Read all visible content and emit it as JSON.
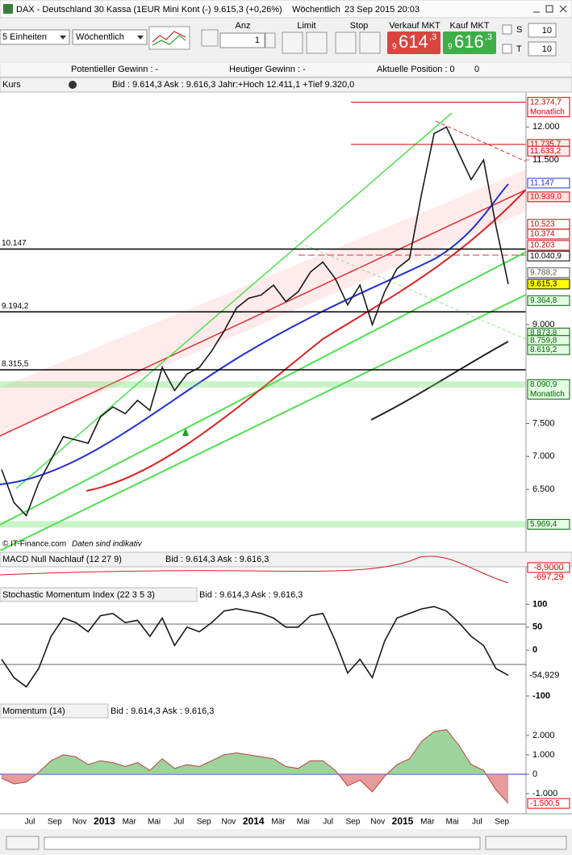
{
  "window": {
    "title": "DAX - Deutschland 30 Kassa (1EUR Mini Kont (-)",
    "price": "9.615,3 (+0,26%)",
    "interval": "Wöchentlich",
    "datetime": "23 Sep 2015 20:03"
  },
  "toolbar": {
    "units": "5 Einheiten",
    "period": "Wöchentlich",
    "anz_label": "Anz",
    "anz_value": "1",
    "limit": "Limit",
    "stop": "Stop",
    "sell_label": "Verkauf MKT",
    "sell_small": "9",
    "sell_big": "614",
    "sell_sup": ",3",
    "buy_label": "Kauf MKT",
    "buy_small": "9",
    "buy_big": "616",
    "buy_sup": ",3",
    "s_label": "S",
    "s_value": "10",
    "t_label": "T",
    "t_value": "10"
  },
  "status": {
    "potential": "Potentieller Gewinn : -",
    "today": "Heutiger Gewinn : -",
    "position": "Aktuelle Position : 0",
    "position_b": "0"
  },
  "price_chart": {
    "type": "line",
    "header": "Kurs",
    "info": "Bid : 9.614,3 Ask : 9.616,3 Jahr:+Hoch 12.411,1 +Tief 9.320,0",
    "copyright": "© IT-Finance.com",
    "disclaimer": "Daten sind indikativ",
    "ylim": [
      5570,
      12530
    ],
    "yticks": [
      {
        "value": 12000,
        "label": "12.000"
      },
      {
        "value": 11500,
        "label": "11.500"
      },
      {
        "value": 9000,
        "label": "9.000"
      },
      {
        "value": 7500,
        "label": "7.500"
      },
      {
        "value": 7000,
        "label": "7.000"
      },
      {
        "value": 6500,
        "label": "6.500"
      }
    ],
    "levels": [
      {
        "value": 10147,
        "label": "10.147"
      },
      {
        "value": 9194.2,
        "label": "9.194,2"
      },
      {
        "value": 8315.5,
        "label": "8.315,5"
      }
    ],
    "price_labels": [
      {
        "value": 12374.7,
        "label": "12.374,7",
        "sub": "Monatlich",
        "color": "#d00000",
        "fill": "#ffffff"
      },
      {
        "value": 11735.7,
        "label": "11.735,7",
        "color": "#d00000",
        "fill": "#ffecec"
      },
      {
        "value": 11633.2,
        "label": "11.633,2",
        "color": "#d00000",
        "fill": "#ffecec"
      },
      {
        "value": 11147,
        "label": "11.147",
        "color": "#2030d0",
        "fill": "#ffffff"
      },
      {
        "value": 10939.0,
        "label": "10.939,0",
        "color": "#d00000",
        "fill": "#ffe0e0"
      },
      {
        "value": 10523,
        "label": "10.523",
        "color": "#d00000",
        "fill": "#ffffff"
      },
      {
        "value": 10374,
        "label": "10.374",
        "color": "#d00000",
        "fill": "#ffffff"
      },
      {
        "value": 10203,
        "label": "10.203",
        "color": "#d00000",
        "fill": "#ffffff"
      },
      {
        "value": 10040.9,
        "label": "10.040,9",
        "color": "#000000",
        "fill": "#ffffff"
      },
      {
        "value": 9788.2,
        "label": "9.788,2",
        "color": "#555555",
        "fill": "#ffffff"
      },
      {
        "value": 9615.3,
        "label": "9.615,3",
        "color": "#000000",
        "fill": "#ffff00"
      },
      {
        "value": 9364.8,
        "label": "9.364,8",
        "color": "#006000",
        "fill": "#e4ffe4"
      },
      {
        "value": 8873.8,
        "label": "8.873,8",
        "color": "#006000",
        "fill": "#e4ffe4"
      },
      {
        "value": 8759.8,
        "label": "8.759,8",
        "color": "#006000",
        "fill": "#e4ffe4"
      },
      {
        "value": 8619.2,
        "label": "8.619,2",
        "color": "#006000",
        "fill": "#e4ffe4"
      },
      {
        "value": 8090.9,
        "label": "8.090,9",
        "sub": "Monatlich",
        "color": "#006000",
        "fill": "#e4ffe4"
      },
      {
        "value": 5969.4,
        "label": "5.969,4",
        "color": "#006000",
        "fill": "#e4ffe4"
      }
    ],
    "series": [
      {
        "name": "DAX",
        "color": "#1a1a1a",
        "values": [
          6800,
          6300,
          6100,
          6600,
          6950,
          7300,
          7250,
          7200,
          7600,
          7750,
          7650,
          7850,
          7700,
          8350,
          8000,
          8250,
          8350,
          8600,
          8900,
          9250,
          9400,
          9450,
          9600,
          9350,
          9500,
          9800,
          9950,
          9700,
          9300,
          9600,
          9000,
          9500,
          9850,
          10000,
          11000,
          11900,
          12000,
          11600,
          11200,
          11500,
          10500,
          9615.3
        ]
      }
    ]
  },
  "macd": {
    "header": "MACD Null Nachlauf (12 27 9)",
    "info": "Bid : 9.614,3 Ask : 9.616,3",
    "label_a": "-8,9000",
    "label_b": "-697,29"
  },
  "stochastic": {
    "type": "line",
    "header": "Stochastic Momentum Index (22 3 5 3)",
    "info": "Bid : 9.614,3 Ask : 9.616,3",
    "ylim": [
      -114,
      106
    ],
    "yticks": [
      100,
      50,
      0,
      -100
    ],
    "last": {
      "value": -54.929,
      "label": "-54,929"
    },
    "series": [
      {
        "name": "SMI",
        "color": "#1a1a1a",
        "values": [
          -20,
          -60,
          -80,
          -40,
          30,
          70,
          60,
          40,
          75,
          80,
          60,
          65,
          30,
          70,
          10,
          50,
          40,
          60,
          85,
          90,
          85,
          80,
          70,
          50,
          50,
          75,
          80,
          20,
          -50,
          -20,
          -60,
          20,
          70,
          80,
          90,
          95,
          85,
          60,
          30,
          10,
          -40,
          -54.929
        ]
      }
    ]
  },
  "momentum": {
    "type": "area",
    "header": "Momentum (14)",
    "info": "Bid : 9.614,3 Ask : 9.616,3",
    "ylim": [
      -2036,
      2909
    ],
    "yticks": [
      {
        "value": 2000,
        "label": "2.000"
      },
      {
        "value": 1000,
        "label": "1.000"
      },
      0,
      {
        "value": -1000,
        "label": "-1.000"
      }
    ],
    "last": {
      "value": -1500.5,
      "label": "-1.500,5"
    },
    "series": [
      {
        "name": "Momentum",
        "color": "#c04040",
        "values": [
          -200,
          -500,
          -400,
          100,
          700,
          1000,
          900,
          500,
          700,
          600,
          400,
          600,
          200,
          800,
          300,
          500,
          400,
          700,
          1000,
          1100,
          1000,
          900,
          800,
          400,
          300,
          700,
          700,
          200,
          -600,
          -300,
          -900,
          -100,
          500,
          800,
          1700,
          2200,
          2300,
          1500,
          500,
          200,
          -800,
          -1500.5
        ]
      }
    ]
  },
  "x_labels": [
    "Jul",
    "Sep",
    "Nov",
    "2013",
    "Mär",
    "Mai",
    "Jul",
    "Sep",
    "Nov",
    "2014",
    "Mär",
    "Mai",
    "Jul",
    "Sep",
    "Nov",
    "2015",
    "Mär",
    "Mai",
    "Jul",
    "Sep"
  ]
}
